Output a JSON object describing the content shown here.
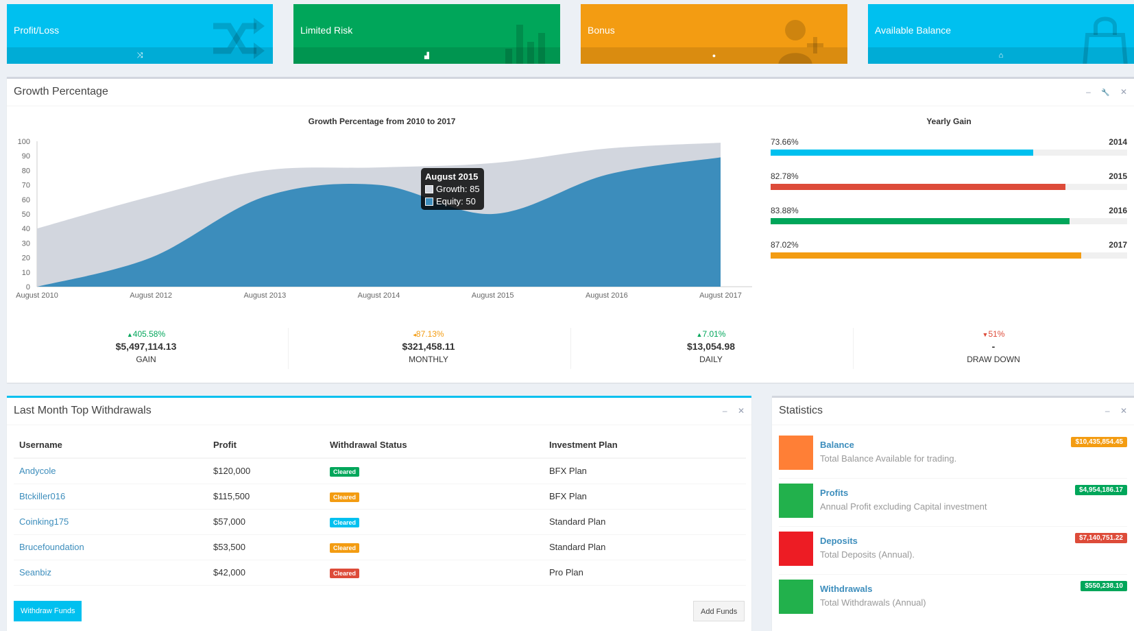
{
  "stat_boxes": [
    {
      "title": "Profit/Loss",
      "color": "#00c0ef",
      "icon": "shuffle-icon",
      "footer_glyph": "⤨"
    },
    {
      "title": "Limited Risk",
      "color": "#00a65a",
      "icon": "bar-chart-icon",
      "footer_glyph": "▟"
    },
    {
      "title": "Bonus",
      "color": "#f39c12",
      "icon": "user-plus-icon",
      "footer_glyph": "●"
    },
    {
      "title": "Available Balance",
      "color": "#00c0ef",
      "icon": "shopping-bag-icon",
      "footer_glyph": "⌂"
    }
  ],
  "growth_panel": {
    "title": "Growth Percentage",
    "tools": {
      "minimize": "–",
      "settings": "🔧",
      "close": "✕"
    },
    "chart_title": "Growth Percentage from 2010 to 2017",
    "yearly_gain_title": "Yearly Gain",
    "tooltip": {
      "title": "August 2015",
      "line1": "Growth: 85",
      "line2": "Equity: 50"
    }
  },
  "chart_data": {
    "type": "area",
    "x": [
      "August 2010",
      "August 2012",
      "August 2013",
      "August 2014",
      "August 2015",
      "August 2016",
      "August 2017"
    ],
    "series": [
      {
        "name": "Growth",
        "values": [
          40,
          62,
          80,
          82,
          85,
          95,
          99
        ],
        "color": "#d2d6de"
      },
      {
        "name": "Equity",
        "values": [
          0,
          20,
          62,
          70,
          50,
          77,
          89
        ],
        "color": "#3c8dbc"
      }
    ],
    "ylim": [
      0,
      100
    ],
    "yticks": [
      0,
      10,
      20,
      30,
      40,
      50,
      60,
      70,
      80,
      90,
      100
    ]
  },
  "yearly_gain": [
    {
      "pct_label": "73.66%",
      "year": "2014",
      "value": 73.66,
      "color": "#00c0ef"
    },
    {
      "pct_label": "82.78%",
      "year": "2015",
      "value": 82.78,
      "color": "#dd4b39"
    },
    {
      "pct_label": "83.88%",
      "year": "2016",
      "value": 83.88,
      "color": "#00a65a"
    },
    {
      "pct_label": "87.02%",
      "year": "2017",
      "value": 87.02,
      "color": "#f39c12"
    }
  ],
  "summary": [
    {
      "arrow": "▲",
      "pct": "405.58%",
      "color": "#00a65a",
      "value": "$5,497,114.13",
      "label": "GAIN"
    },
    {
      "arrow": "◂",
      "pct": "87.13%",
      "color": "#f39c12",
      "value": "$321,458.11",
      "label": "MONTHLY"
    },
    {
      "arrow": "▲",
      "pct": "7.01%",
      "color": "#00a65a",
      "value": "$13,054.98",
      "label": "DAILY"
    },
    {
      "arrow": "▼",
      "pct": "51%",
      "color": "#dd4b39",
      "value": "-",
      "label": "DRAW DOWN"
    }
  ],
  "withdrawals_panel": {
    "title": "Last Month Top Withdrawals",
    "tools": {
      "minimize": "–",
      "close": "✕"
    },
    "headers": [
      "Username",
      "Profit",
      "Withdrawal Status",
      "Investment Plan"
    ],
    "rows": [
      {
        "user": "Andycole",
        "profit": "$120,000",
        "status": "Cleared",
        "status_color": "#00a65a",
        "plan": "BFX Plan"
      },
      {
        "user": "Btckiller016",
        "profit": "$115,500",
        "status": "Cleared",
        "status_color": "#f39c12",
        "plan": "BFX Plan"
      },
      {
        "user": "Coinking175",
        "profit": "$57,000",
        "status": "Cleared",
        "status_color": "#00c0ef",
        "plan": "Standard Plan"
      },
      {
        "user": "Brucefoundation",
        "profit": "$53,500",
        "status": "Cleared",
        "status_color": "#f39c12",
        "plan": "Standard Plan"
      },
      {
        "user": "Seanbiz",
        "profit": "$42,000",
        "status": "Cleared",
        "status_color": "#dd4b39",
        "plan": "Pro Plan"
      }
    ],
    "withdraw_button": "Withdraw Funds",
    "add_button": "Add Funds"
  },
  "statistics_panel": {
    "title": "Statistics",
    "tools": {
      "minimize": "–",
      "close": "✕"
    },
    "items": [
      {
        "name": "Balance",
        "desc": "Total Balance Available for trading.",
        "badge": "$10,435,854.45",
        "badge_color": "#f39c12",
        "img_color": "#ff7f36"
      },
      {
        "name": "Profits",
        "desc": "Annual Profit excluding Capital investment",
        "badge": "$4,954,186.17",
        "badge_color": "#00a65a",
        "img_color": "#22b14c"
      },
      {
        "name": "Deposits",
        "desc": "Total Deposits (Annual).",
        "badge": "$7,140,751.22",
        "badge_color": "#dd4b39",
        "img_color": "#ed1c24"
      },
      {
        "name": "Withdrawals",
        "desc": "Total Withdrawals (Annual)",
        "badge": "$550,238.10",
        "badge_color": "#00a65a",
        "img_color": "#22b14c"
      }
    ]
  }
}
